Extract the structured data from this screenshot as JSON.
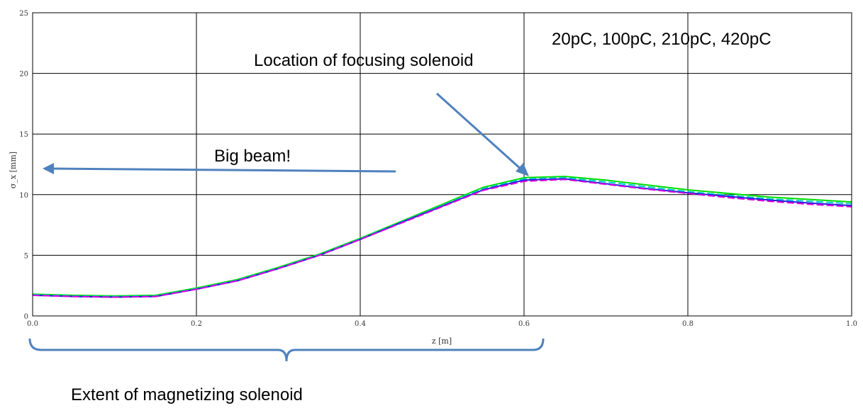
{
  "chart_data": {
    "type": "line",
    "title": "",
    "xlabel": "z [m]",
    "ylabel": "σ_x [mm]",
    "xlim": [
      0.0,
      1.0
    ],
    "ylim": [
      0,
      25
    ],
    "grid": true,
    "x_ticks": [
      "0.0",
      "0.2",
      "0.4",
      "0.6",
      "0.8",
      "1.0"
    ],
    "y_ticks": [
      "0",
      "5",
      "10",
      "15",
      "20",
      "25"
    ],
    "legend_text": "20pC, 100pC, 210pC, 420pC",
    "series": [
      {
        "name": "20pC",
        "color": "#00dd00",
        "x": [
          0.0,
          0.05,
          0.1,
          0.15,
          0.2,
          0.25,
          0.3,
          0.35,
          0.4,
          0.45,
          0.5,
          0.55,
          0.6,
          0.65,
          0.7,
          0.75,
          0.8,
          0.85,
          0.9,
          0.95,
          1.0
        ],
        "y": [
          1.8,
          1.7,
          1.65,
          1.7,
          2.3,
          3.0,
          4.0,
          5.1,
          6.4,
          7.8,
          9.2,
          10.6,
          11.4,
          11.5,
          11.2,
          10.8,
          10.4,
          10.1,
          9.8,
          9.6,
          9.4
        ]
      },
      {
        "name": "100pC",
        "color": "#00cccc",
        "x": [
          0.0,
          0.05,
          0.1,
          0.15,
          0.2,
          0.25,
          0.3,
          0.35,
          0.4,
          0.45,
          0.5,
          0.55,
          0.6,
          0.65,
          0.7,
          0.75,
          0.8,
          0.85,
          0.9,
          0.95,
          1.0
        ],
        "y": [
          1.75,
          1.65,
          1.6,
          1.65,
          2.25,
          2.95,
          3.95,
          5.05,
          6.35,
          7.75,
          9.1,
          10.5,
          11.3,
          11.4,
          11.05,
          10.65,
          10.25,
          9.95,
          9.65,
          9.45,
          9.25
        ]
      },
      {
        "name": "210pC",
        "color": "#2020dd",
        "x": [
          0.0,
          0.05,
          0.1,
          0.15,
          0.2,
          0.25,
          0.3,
          0.35,
          0.4,
          0.45,
          0.5,
          0.55,
          0.6,
          0.65,
          0.7,
          0.75,
          0.8,
          0.85,
          0.9,
          0.95,
          1.0
        ],
        "y": [
          1.7,
          1.6,
          1.55,
          1.6,
          2.2,
          2.9,
          3.9,
          5.0,
          6.3,
          7.7,
          9.05,
          10.4,
          11.2,
          11.3,
          10.9,
          10.5,
          10.15,
          9.85,
          9.55,
          9.3,
          9.1
        ]
      },
      {
        "name": "420pC",
        "color": "#dd00dd",
        "x": [
          0.0,
          0.05,
          0.1,
          0.15,
          0.2,
          0.25,
          0.3,
          0.35,
          0.4,
          0.45,
          0.5,
          0.55,
          0.6,
          0.65,
          0.7,
          0.75,
          0.8,
          0.85,
          0.9,
          0.95,
          1.0
        ],
        "y": [
          1.7,
          1.6,
          1.55,
          1.6,
          2.2,
          2.9,
          3.9,
          5.0,
          6.3,
          7.65,
          9.0,
          10.35,
          11.1,
          11.25,
          10.85,
          10.45,
          10.1,
          9.75,
          9.45,
          9.2,
          9.0
        ]
      }
    ],
    "annotations": {
      "big_beam": "Big beam!",
      "focusing": "Location of focusing solenoid",
      "magnetizing": "Extent of magnetizing solenoid"
    }
  }
}
